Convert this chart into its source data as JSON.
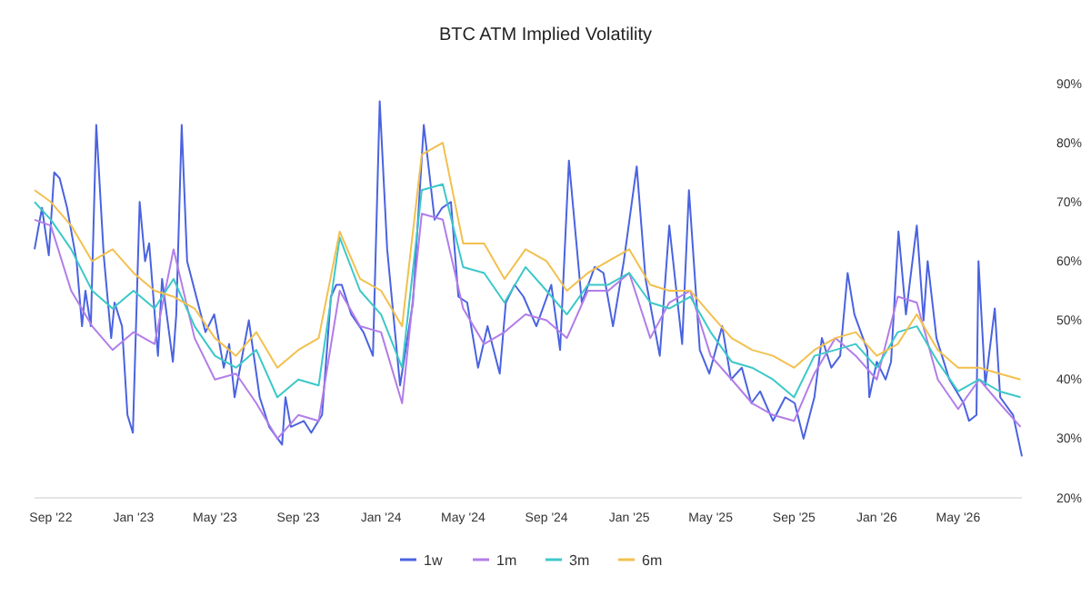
{
  "chart_data": {
    "type": "line",
    "title": "BTC ATM Implied Volatility",
    "x": [
      "2022-08-08",
      "2022-09-01",
      "2022-10-01",
      "2022-11-01",
      "2022-12-01",
      "2023-01-01",
      "2023-02-01",
      "2023-03-01",
      "2023-04-01",
      "2023-05-01",
      "2023-06-01",
      "2023-07-01",
      "2023-08-01",
      "2023-09-01",
      "2023-10-01",
      "2023-11-01",
      "2023-12-01",
      "2024-01-01",
      "2024-02-01",
      "2024-03-01",
      "2024-04-01",
      "2024-05-01",
      "2024-06-01",
      "2024-07-01",
      "2024-08-01",
      "2024-09-01",
      "2024-10-01",
      "2024-11-01",
      "2024-12-01",
      "2025-01-01",
      "2025-02-01",
      "2025-03-01",
      "2025-04-01",
      "2025-05-01",
      "2025-06-01",
      "2025-07-01",
      "2025-08-01",
      "2025-09-01",
      "2025-10-01",
      "2025-11-01",
      "2025-12-01",
      "2026-01-01",
      "2026-02-01",
      "2026-03-01",
      "2026-04-01",
      "2026-05-01",
      "2026-06-01",
      "2026-07-01",
      "2026-08-01"
    ],
    "series": [
      {
        "name": "1w",
        "color": "#4a63e0",
        "x": [
          "2022-08-08",
          "2022-08-19",
          "2022-08-29",
          "2022-09-06",
          "2022-09-14",
          "2022-09-25",
          "2022-10-09",
          "2022-10-17",
          "2022-10-22",
          "2022-10-30",
          "2022-11-07",
          "2022-11-18",
          "2022-11-29",
          "2022-12-04",
          "2022-12-15",
          "2022-12-23",
          "2022-12-31",
          "2023-01-10",
          "2023-01-18",
          "2023-01-24",
          "2023-02-06",
          "2023-02-12",
          "2023-02-28",
          "2023-03-05",
          "2023-03-13",
          "2023-03-21",
          "2023-04-17",
          "2023-04-30",
          "2023-05-14",
          "2023-05-22",
          "2023-05-30",
          "2023-06-20",
          "2023-07-06",
          "2023-07-20",
          "2023-08-08",
          "2023-08-13",
          "2023-08-21",
          "2023-09-09",
          "2023-09-20",
          "2023-10-06",
          "2023-10-19",
          "2023-10-27",
          "2023-11-04",
          "2023-11-18",
          "2023-12-06",
          "2023-12-20",
          "2023-12-30",
          "2024-01-10",
          "2024-01-29",
          "2024-02-17",
          "2024-03-04",
          "2024-03-20",
          "2024-03-31",
          "2024-04-13",
          "2024-04-24",
          "2024-05-07",
          "2024-05-23",
          "2024-06-06",
          "2024-06-24",
          "2024-07-03",
          "2024-07-16",
          "2024-07-29",
          "2024-08-17",
          "2024-09-08",
          "2024-09-21",
          "2024-10-04",
          "2024-10-23",
          "2024-11-11",
          "2024-11-24",
          "2024-12-08",
          "2024-12-24",
          "2025-01-12",
          "2025-01-25",
          "2025-02-15",
          "2025-03-01",
          "2025-03-20",
          "2025-03-30",
          "2025-04-15",
          "2025-04-29",
          "2025-05-18",
          "2025-05-31",
          "2025-06-16",
          "2025-06-30",
          "2025-07-13",
          "2025-08-01",
          "2025-08-19",
          "2025-09-02",
          "2025-09-15",
          "2025-10-01",
          "2025-10-12",
          "2025-10-26",
          "2025-11-08",
          "2025-11-19",
          "2025-11-29",
          "2025-12-18",
          "2025-12-21",
          "2026-01-01",
          "2026-01-14",
          "2026-01-22",
          "2026-02-02",
          "2026-02-13",
          "2026-03-01",
          "2026-03-11",
          "2026-03-17",
          "2026-03-30",
          "2026-04-18",
          "2026-05-09",
          "2026-05-17",
          "2026-05-28",
          "2026-05-31",
          "2026-06-10",
          "2026-06-24",
          "2026-07-02",
          "2026-07-21",
          "2026-08-03"
        ],
        "values": [
          62,
          69,
          61,
          75,
          74,
          69,
          60,
          49,
          55,
          49,
          83,
          61,
          47,
          53,
          49,
          34,
          31,
          70,
          60,
          63,
          44,
          57,
          43,
          51,
          83,
          60,
          48,
          51,
          42,
          46,
          37,
          50,
          37,
          32,
          29,
          37,
          32,
          33,
          31,
          34,
          54,
          56,
          56,
          51,
          48,
          44,
          87,
          62,
          39,
          53,
          83,
          67,
          69,
          70,
          54,
          53,
          42,
          49,
          41,
          53,
          56,
          54,
          49,
          56,
          45,
          77,
          53,
          59,
          58,
          49,
          60,
          76,
          57,
          44,
          66,
          46,
          72,
          45,
          41,
          49,
          40,
          42,
          36,
          38,
          33,
          37,
          36,
          30,
          37,
          47,
          42,
          44,
          58,
          51,
          45,
          37,
          43,
          40,
          43,
          65,
          51,
          66,
          50,
          60,
          47,
          40,
          36,
          33,
          34,
          60,
          39,
          52,
          37,
          34,
          27
        ]
      },
      {
        "name": "1m",
        "color": "#b27de8",
        "values": [
          67,
          66,
          55,
          49,
          45,
          48,
          46,
          62,
          47,
          40,
          41,
          36,
          30,
          34,
          33,
          55,
          49,
          48,
          36,
          68,
          67,
          52,
          46,
          48,
          51,
          50,
          47,
          55,
          55,
          58,
          47,
          53,
          55,
          44,
          40,
          36,
          34,
          33,
          41,
          47,
          44,
          40,
          54,
          53,
          40,
          35,
          40,
          36,
          32
        ]
      },
      {
        "name": "3m",
        "color": "#3cc8c8",
        "values": [
          70,
          67,
          62,
          55,
          52,
          55,
          52,
          57,
          49,
          44,
          42,
          45,
          37,
          40,
          39,
          64,
          55,
          51,
          42,
          72,
          73,
          59,
          58,
          53,
          59,
          55,
          51,
          56,
          56,
          58,
          53,
          52,
          54,
          48,
          43,
          42,
          40,
          37,
          44,
          45,
          46,
          42,
          48,
          49,
          43,
          38,
          40,
          38,
          37
        ]
      },
      {
        "name": "6m",
        "color": "#f2c04e",
        "values": [
          72,
          70,
          66,
          60,
          62,
          58,
          55,
          54,
          52,
          47,
          44,
          48,
          42,
          45,
          47,
          65,
          57,
          55,
          49,
          78,
          80,
          63,
          63,
          57,
          62,
          60,
          55,
          58,
          60,
          62,
          56,
          55,
          55,
          51,
          47,
          45,
          44,
          42,
          45,
          47,
          48,
          44,
          46,
          51,
          45,
          42,
          42,
          41,
          40
        ]
      }
    ],
    "xlim": [
      "2022-08-08",
      "2026-08-03"
    ],
    "xticks": [
      {
        "value": "2022-09-01",
        "label": "Sep '22"
      },
      {
        "value": "2023-01-01",
        "label": "Jan '23"
      },
      {
        "value": "2023-05-01",
        "label": "May '23"
      },
      {
        "value": "2023-09-01",
        "label": "Sep '23"
      },
      {
        "value": "2024-01-01",
        "label": "Jan '24"
      },
      {
        "value": "2024-05-01",
        "label": "May '24"
      },
      {
        "value": "2024-09-01",
        "label": "Sep '24"
      },
      {
        "value": "2025-01-01",
        "label": "Jan '25"
      },
      {
        "value": "2025-05-01",
        "label": "May '25"
      },
      {
        "value": "2025-09-01",
        "label": "Sep '25"
      },
      {
        "value": "2026-01-01",
        "label": "Jan '26"
      },
      {
        "value": "2026-05-01",
        "label": "May '26"
      }
    ],
    "ylim": [
      20,
      90
    ],
    "yticks": [
      {
        "value": 20,
        "label": "20%"
      },
      {
        "value": 30,
        "label": "30%"
      },
      {
        "value": 40,
        "label": "40%"
      },
      {
        "value": 50,
        "label": "50%"
      },
      {
        "value": 60,
        "label": "60%"
      },
      {
        "value": 70,
        "label": "70%"
      },
      {
        "value": 80,
        "label": "80%"
      },
      {
        "value": 90,
        "label": "90%"
      }
    ],
    "legend": "bottom"
  }
}
